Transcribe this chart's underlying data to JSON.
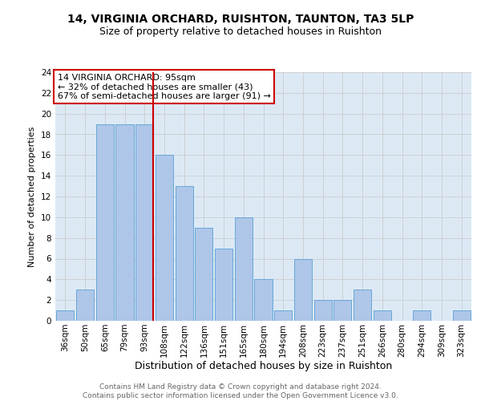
{
  "title1": "14, VIRGINIA ORCHARD, RUISHTON, TAUNTON, TA3 5LP",
  "title2": "Size of property relative to detached houses in Ruishton",
  "xlabel": "Distribution of detached houses by size in Ruishton",
  "ylabel": "Number of detached properties",
  "categories": [
    "36sqm",
    "50sqm",
    "65sqm",
    "79sqm",
    "93sqm",
    "108sqm",
    "122sqm",
    "136sqm",
    "151sqm",
    "165sqm",
    "180sqm",
    "194sqm",
    "208sqm",
    "223sqm",
    "237sqm",
    "251sqm",
    "266sqm",
    "280sqm",
    "294sqm",
    "309sqm",
    "323sqm"
  ],
  "values": [
    1,
    3,
    19,
    19,
    19,
    16,
    13,
    9,
    7,
    10,
    4,
    1,
    6,
    2,
    2,
    3,
    1,
    0,
    1,
    0,
    1
  ],
  "bar_color": "#aec6e8",
  "bar_edge_color": "#5a9fd4",
  "annotation_text": "14 VIRGINIA ORCHARD: 95sqm\n← 32% of detached houses are smaller (43)\n67% of semi-detached houses are larger (91) →",
  "annotation_box_color": "#ffffff",
  "annotation_box_edge_color": "#cc0000",
  "vline_color": "#cc0000",
  "vline_x_index": 4,
  "ylim": [
    0,
    24
  ],
  "yticks": [
    0,
    2,
    4,
    6,
    8,
    10,
    12,
    14,
    16,
    18,
    20,
    22,
    24
  ],
  "grid_color": "#cccccc",
  "bg_color": "#dce9f5",
  "footer_text": "Contains HM Land Registry data © Crown copyright and database right 2024.\nContains public sector information licensed under the Open Government Licence v3.0.",
  "title1_fontsize": 10,
  "title2_fontsize": 9,
  "xlabel_fontsize": 9,
  "ylabel_fontsize": 8,
  "tick_fontsize": 7.5,
  "annotation_fontsize": 8,
  "footer_fontsize": 6.5
}
